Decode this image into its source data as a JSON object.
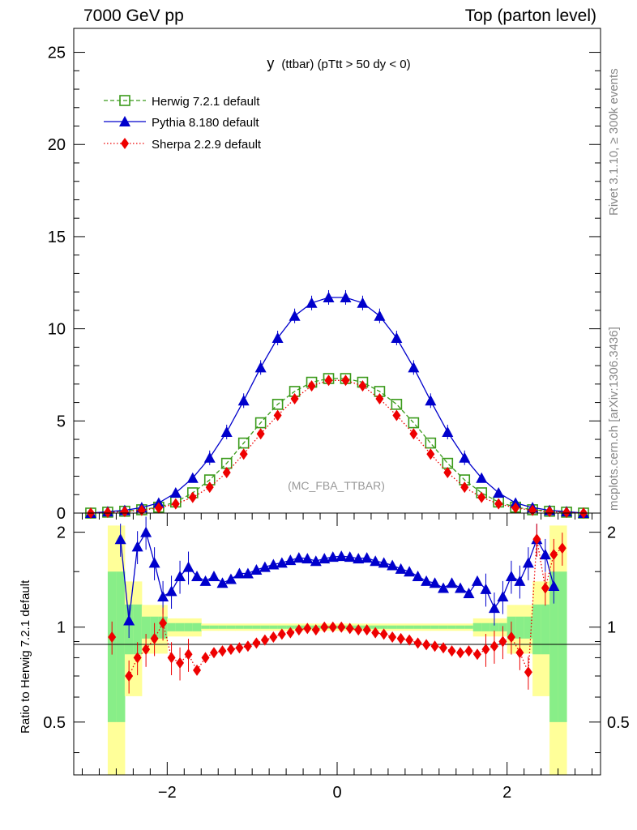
{
  "header": {
    "energy_label": "7000 GeV pp",
    "process_label": "Top (parton level)"
  },
  "side_labels": {
    "rivet": "Rivet 3.1.10, ≥ 300k events",
    "mcplots": "mcplots.cern.ch [arXiv:1306.3436]"
  },
  "colors": {
    "herwig": "#3a9a1a",
    "pythia": "#0000cc",
    "sherpa": "#ee0000",
    "band_yellow": "#ffff99",
    "band_green": "#88ee88"
  },
  "chart_data": [
    {
      "type": "line",
      "title_main": "y",
      "title_sub": "(ttbar) (pTtt > 50 dy < 0)",
      "annotation": "(MC_FBA_TTBAR)",
      "xlabel": "",
      "ylabel": "",
      "xlim": [
        -3.1,
        3.1
      ],
      "ylim": [
        0,
        26.3
      ],
      "yticks": [
        0,
        5,
        10,
        15,
        20,
        25
      ],
      "ytick_labels": [
        "0",
        "5",
        "10",
        "15",
        "20",
        "25"
      ],
      "legend_position": "top-left",
      "legend": [
        "Herwig 7.2.1 default",
        "Pythia 8.180 default",
        "Sherpa 2.2.9 default"
      ],
      "x": [
        -2.9,
        -2.7,
        -2.5,
        -2.3,
        -2.1,
        -1.9,
        -1.7,
        -1.5,
        -1.3,
        -1.1,
        -0.9,
        -0.7,
        -0.5,
        -0.3,
        -0.1,
        0.1,
        0.3,
        0.5,
        0.7,
        0.9,
        1.1,
        1.3,
        1.5,
        1.7,
        1.9,
        2.1,
        2.3,
        2.5,
        2.7,
        2.9
      ],
      "series": [
        {
          "name": "Herwig 7.2.1 default",
          "marker": "open-square",
          "line": "dashed",
          "values": [
            0.0,
            0.05,
            0.1,
            0.18,
            0.32,
            0.6,
            1.1,
            1.8,
            2.7,
            3.8,
            4.9,
            5.9,
            6.6,
            7.1,
            7.3,
            7.3,
            7.1,
            6.6,
            5.9,
            4.9,
            3.8,
            2.7,
            1.8,
            1.1,
            0.6,
            0.32,
            0.18,
            0.1,
            0.05,
            0.0
          ]
        },
        {
          "name": "Pythia 8.180 default",
          "marker": "filled-triangle",
          "line": "solid",
          "values": [
            0.0,
            0.08,
            0.15,
            0.3,
            0.55,
            1.1,
            1.9,
            3.0,
            4.4,
            6.1,
            7.9,
            9.5,
            10.7,
            11.4,
            11.7,
            11.7,
            11.4,
            10.7,
            9.5,
            7.9,
            6.1,
            4.4,
            3.0,
            1.9,
            1.1,
            0.55,
            0.3,
            0.15,
            0.08,
            0.0
          ]
        },
        {
          "name": "Sherpa 2.2.9 default",
          "marker": "filled-diamond",
          "line": "dotted",
          "values": [
            0.0,
            0.04,
            0.08,
            0.15,
            0.28,
            0.5,
            0.85,
            1.4,
            2.2,
            3.2,
            4.3,
            5.3,
            6.2,
            6.9,
            7.2,
            7.2,
            6.9,
            6.2,
            5.3,
            4.3,
            3.2,
            2.2,
            1.4,
            0.85,
            0.5,
            0.28,
            0.15,
            0.08,
            0.04,
            0.0
          ]
        }
      ]
    },
    {
      "type": "line",
      "title": "",
      "xlabel": "",
      "ylabel": "Ratio to Herwig 7.2.1 default",
      "xlim": [
        -3.1,
        3.1
      ],
      "ylim": [
        0.34,
        2.3
      ],
      "yticks": [
        0.5,
        1,
        2
      ],
      "ytick_labels": [
        "0.5",
        "1",
        "2"
      ],
      "xticks": [
        -2,
        0,
        2
      ],
      "xtick_labels": [
        "−2",
        "0",
        "2"
      ],
      "reference_line": 1,
      "x": [
        -2.65,
        -2.55,
        -2.45,
        -2.35,
        -2.25,
        -2.15,
        -2.05,
        -1.95,
        -1.85,
        -1.75,
        -1.65,
        -1.55,
        -1.45,
        -1.35,
        -1.25,
        -1.15,
        -1.05,
        -0.95,
        -0.85,
        -0.75,
        -0.65,
        -0.55,
        -0.45,
        -0.35,
        -0.25,
        -0.15,
        -0.05,
        0.05,
        0.15,
        0.25,
        0.35,
        0.45,
        0.55,
        0.65,
        0.75,
        0.85,
        0.95,
        1.05,
        1.15,
        1.25,
        1.35,
        1.45,
        1.55,
        1.65,
        1.75,
        1.85,
        1.95,
        2.05,
        2.15,
        2.25,
        2.35,
        2.45,
        2.55,
        2.65
      ],
      "series": [
        {
          "name": "Pythia 8.180 default",
          "marker": "filled-triangle",
          "line": "solid",
          "values": [
            null,
            1.9,
            1.05,
            1.8,
            2.0,
            1.6,
            1.25,
            1.3,
            1.45,
            1.55,
            1.45,
            1.4,
            1.45,
            1.38,
            1.42,
            1.48,
            1.48,
            1.52,
            1.55,
            1.58,
            1.6,
            1.63,
            1.66,
            1.65,
            1.62,
            1.65,
            1.67,
            1.68,
            1.67,
            1.65,
            1.66,
            1.62,
            1.6,
            1.57,
            1.53,
            1.5,
            1.45,
            1.4,
            1.38,
            1.33,
            1.38,
            1.33,
            1.28,
            1.4,
            1.32,
            1.15,
            1.25,
            1.45,
            1.4,
            1.6,
            1.9,
            1.7,
            1.35,
            null
          ]
        },
        {
          "name": "Sherpa 2.2.9 default",
          "marker": "filled-diamond",
          "line": "dotted",
          "values": [
            0.93,
            null,
            0.7,
            0.8,
            0.85,
            0.92,
            1.03,
            0.8,
            0.77,
            0.82,
            0.73,
            0.8,
            0.83,
            0.84,
            0.85,
            0.86,
            0.87,
            0.89,
            0.91,
            0.93,
            0.95,
            0.96,
            0.98,
            0.99,
            0.98,
            1.0,
            1.0,
            1.0,
            0.99,
            0.98,
            0.98,
            0.96,
            0.95,
            0.93,
            0.92,
            0.91,
            0.89,
            0.88,
            0.87,
            0.86,
            0.84,
            0.83,
            0.84,
            0.82,
            0.85,
            0.87,
            0.9,
            0.93,
            0.83,
            0.72,
            1.9,
            1.33,
            1.7,
            1.78
          ]
        }
      ]
    }
  ]
}
